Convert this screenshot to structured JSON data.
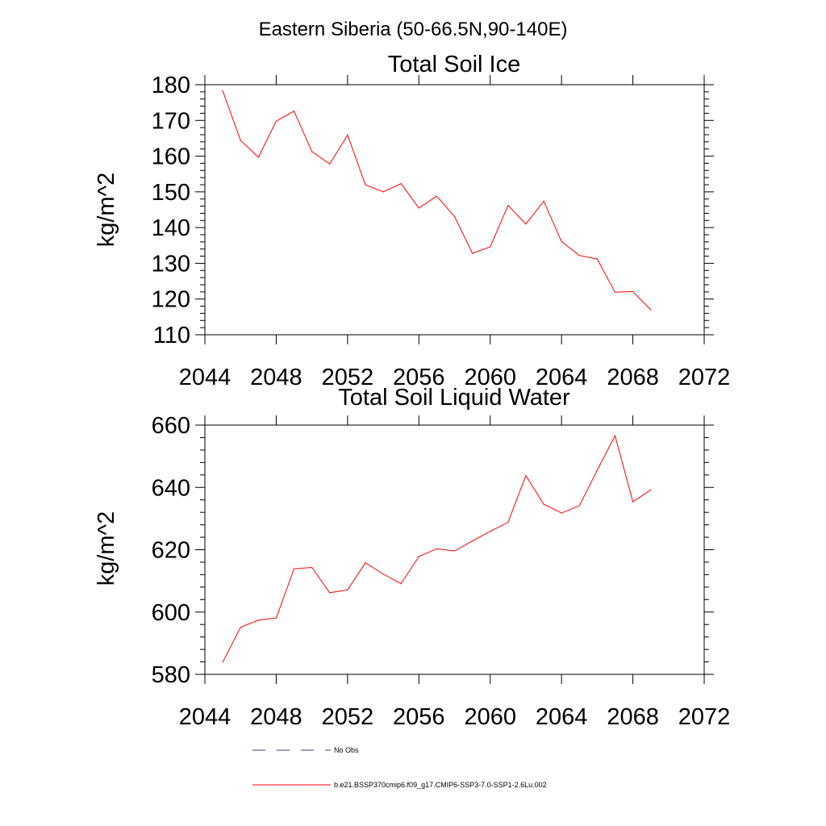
{
  "figure": {
    "title": "Eastern Siberia (50-66.5N,90-140E)"
  },
  "chart_data": [
    {
      "type": "line",
      "title": "Total Soil Ice",
      "xlabel": "",
      "ylabel": "kg/m^2",
      "xlim": [
        2044,
        2072
      ],
      "ylim": [
        110,
        180
      ],
      "xticks": [
        2044,
        2048,
        2052,
        2056,
        2060,
        2064,
        2068,
        2072
      ],
      "yticks": [
        110,
        120,
        130,
        140,
        150,
        160,
        170,
        180
      ],
      "x": [
        2045,
        2046,
        2047,
        2048,
        2049,
        2050,
        2051,
        2052,
        2053,
        2054,
        2055,
        2056,
        2057,
        2058,
        2059,
        2060,
        2061,
        2062,
        2063,
        2064,
        2065,
        2066,
        2067,
        2068,
        2069
      ],
      "series": [
        {
          "name": "b.e21.BSSP370cmip6.f09_g17.CMIP6-SSP3-7.0-SSP1-2.6Lu.002",
          "color": "#ff0000",
          "values": [
            178.3,
            164.4,
            159.7,
            169.8,
            172.6,
            161.3,
            157.8,
            165.9,
            152.0,
            150.0,
            152.3,
            145.5,
            148.8,
            143.1,
            132.8,
            134.6,
            146.2,
            141.0,
            147.4,
            136.1,
            132.2,
            131.2,
            121.9,
            122.1,
            117.0
          ]
        }
      ],
      "grid": false
    },
    {
      "type": "line",
      "title": "Total Soil Liquid Water",
      "xlabel": "",
      "ylabel": "kg/m^2",
      "xlim": [
        2044,
        2072
      ],
      "ylim": [
        580,
        660
      ],
      "xticks": [
        2044,
        2048,
        2052,
        2056,
        2060,
        2064,
        2068,
        2072
      ],
      "yticks": [
        580,
        600,
        620,
        640,
        660
      ],
      "x": [
        2045,
        2046,
        2047,
        2048,
        2049,
        2050,
        2051,
        2052,
        2053,
        2054,
        2055,
        2056,
        2057,
        2058,
        2059,
        2060,
        2061,
        2062,
        2063,
        2064,
        2065,
        2066,
        2067,
        2068,
        2069
      ],
      "series": [
        {
          "name": "b.e21.BSSP370cmip6.f09_g17.CMIP6-SSP3-7.0-SSP1-2.6Lu.002",
          "color": "#ff0000",
          "values": [
            583.9,
            595.1,
            597.4,
            598.1,
            613.9,
            614.3,
            606.2,
            607.1,
            615.8,
            612.2,
            609.1,
            617.8,
            620.3,
            619.6,
            622.8,
            625.9,
            628.8,
            643.8,
            634.6,
            631.8,
            634.1,
            645.5,
            656.6,
            635.4,
            639.2
          ]
        }
      ],
      "grid": false
    }
  ],
  "legend": {
    "position": "bottom",
    "entries": [
      {
        "label": "No Obs",
        "color": "#3c3c8c",
        "style": "dashed"
      },
      {
        "label": "b.e21.BSSP370cmip6.f09_g17.CMIP6-SSP3-7.0-SSP1-2.6Lu.002",
        "color": "#ff0000",
        "style": "solid"
      }
    ]
  }
}
